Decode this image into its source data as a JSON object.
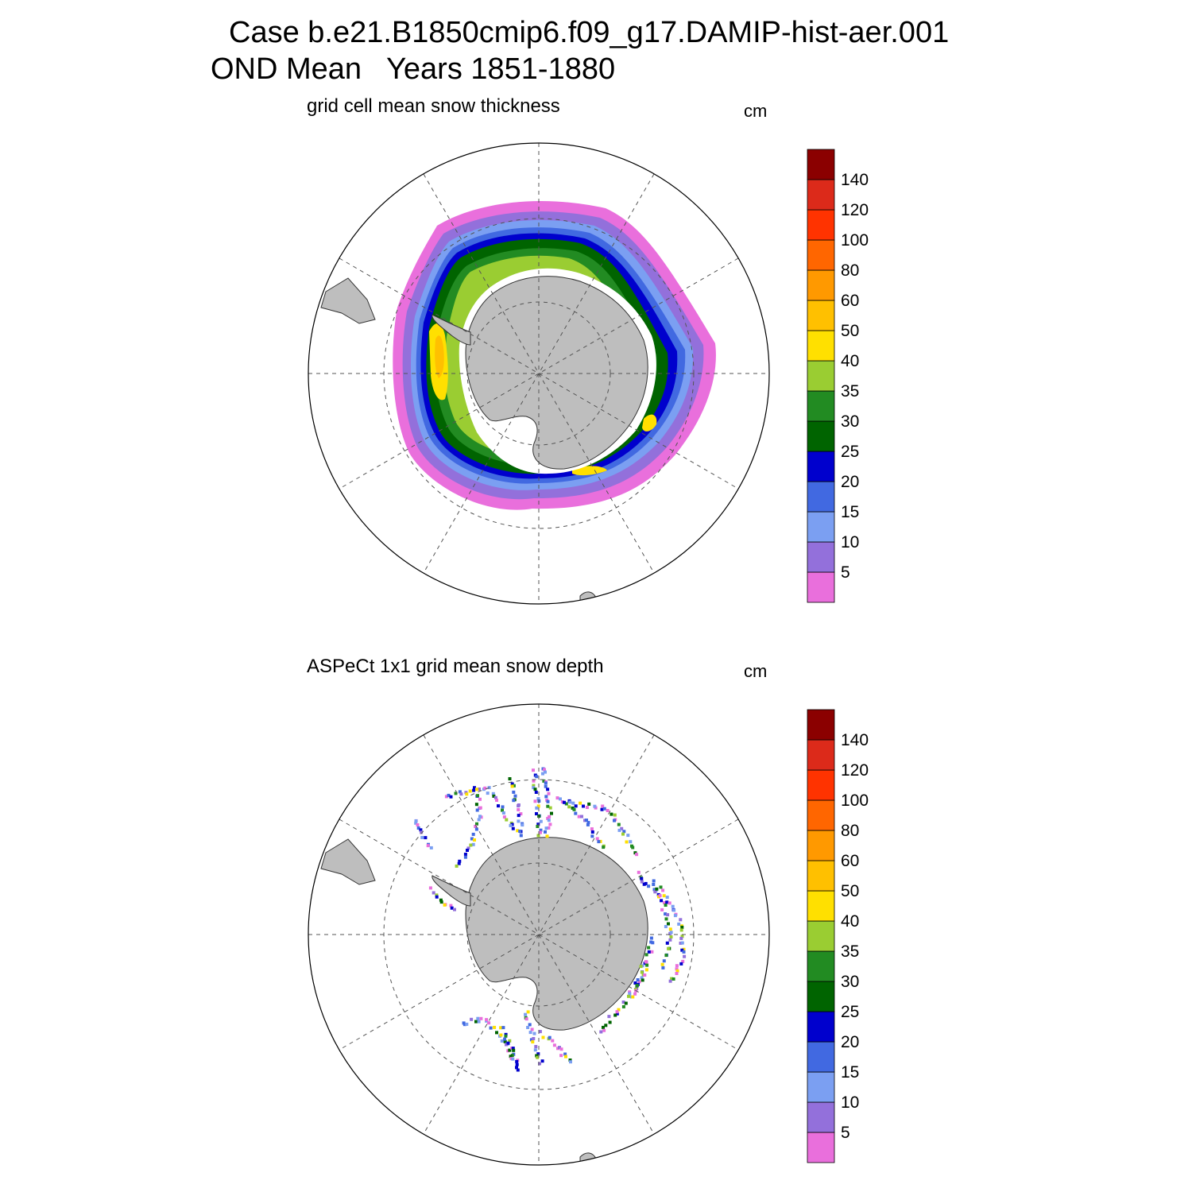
{
  "title": {
    "line1": "Case b.e21.B1850cmip6.f09_g17.DAMIP-hist-aer.001",
    "line2": "OND Mean   Years 1851-1880"
  },
  "colors": {
    "land": "#bebebe",
    "levels": [
      "#e96fdc",
      "#9370db",
      "#7b9ff2",
      "#4169e1",
      "#0000cd",
      "#006400",
      "#228b22",
      "#9acd32",
      "#ffe000",
      "#ffc000",
      "#ff9900",
      "#ff6600",
      "#ff3300",
      "#dc2a1a",
      "#8b0000"
    ]
  },
  "colorbar": {
    "labels": [
      "5",
      "10",
      "15",
      "20",
      "25",
      "30",
      "35",
      "40",
      "50",
      "60",
      "80",
      "100",
      "120",
      "140"
    ]
  },
  "panels": [
    {
      "id": "model",
      "subtitle": "grid cell mean snow thickness",
      "units": "cm"
    },
    {
      "id": "obs",
      "subtitle": "ASPeCt 1x1 grid mean snow depth",
      "units": "cm"
    }
  ]
}
